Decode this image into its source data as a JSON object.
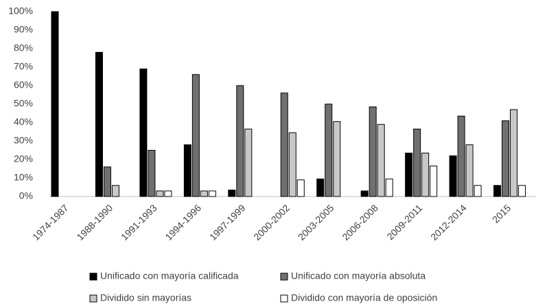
{
  "chart_data": {
    "type": "bar",
    "categories": [
      "1974-1987",
      "1988-1990",
      "1991-1993",
      "1994-1996",
      "1997-1999",
      "2000-2002",
      "2003-2005",
      "2006-2008",
      "2009-2011",
      "2012-2014",
      "2015"
    ],
    "series": [
      {
        "name": "Unificado con mayoría calificada",
        "color": "#000000",
        "values": [
          100,
          78,
          69,
          28,
          3.5,
          0,
          9.5,
          3,
          23.5,
          22,
          6
        ]
      },
      {
        "name": "Unificado con mayoría absoluta",
        "color": "#707070",
        "values": [
          0,
          16,
          25,
          66,
          60,
          56,
          50,
          48.5,
          36.5,
          43.5,
          41
        ]
      },
      {
        "name": "Dividido sin mayorías",
        "color": "#c8c8c8",
        "values": [
          0,
          6,
          3,
          3,
          36.5,
          34.5,
          40.5,
          39,
          23.5,
          28,
          47
        ]
      },
      {
        "name": "Dividido con mayoría de oposición",
        "color": "#ffffff",
        "values": [
          0,
          0,
          3,
          3,
          0,
          9,
          0,
          9.5,
          16.5,
          6,
          6
        ]
      }
    ],
    "ylim": [
      0,
      100
    ],
    "yticks": [
      {
        "value": 0,
        "label": "0%"
      },
      {
        "value": 10,
        "label": "10%"
      },
      {
        "value": 20,
        "label": "20%"
      },
      {
        "value": 30,
        "label": "30%"
      },
      {
        "value": 40,
        "label": "40%"
      },
      {
        "value": 50,
        "label": "50%"
      },
      {
        "value": 60,
        "label": "60%"
      },
      {
        "value": 70,
        "label": "70%"
      },
      {
        "value": 80,
        "label": "80%"
      },
      {
        "value": 90,
        "label": "90%"
      },
      {
        "value": 100,
        "label": "100%"
      }
    ],
    "grid": false
  }
}
